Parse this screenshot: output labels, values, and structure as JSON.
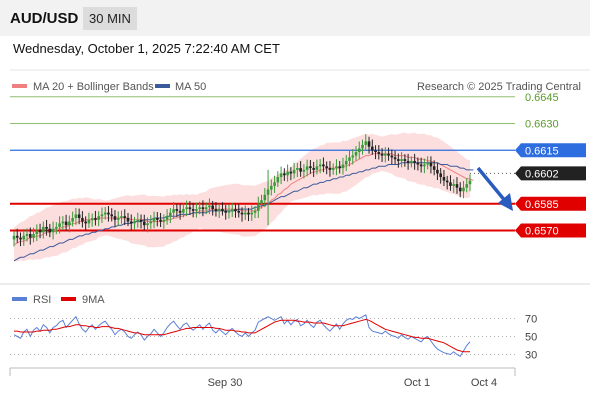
{
  "header": {
    "symbol": "AUD/USD",
    "timeframe": "30 MIN",
    "datetime": "Wednesday, October 1, 2025 7:22:40 AM CET"
  },
  "main_legend": [
    {
      "label": "MA 20 + Bollinger Bands",
      "color": "#f08080"
    },
    {
      "label": "MA 50",
      "color": "#3a5a9c"
    }
  ],
  "credit": "Research © 2025 Trading Central",
  "price_levels": [
    {
      "label": "0.6645",
      "value": 0.6645,
      "color": "#8fbf6f",
      "text_color": "#5a9a2a",
      "style": "text",
      "line": "thin"
    },
    {
      "label": "0.6630",
      "value": 0.663,
      "color": "#8fbf6f",
      "text_color": "#5a9a2a",
      "style": "text",
      "line": "thin"
    },
    {
      "label": "0.6615",
      "value": 0.6615,
      "color": "#2e6de0",
      "text_color": "#ffffff",
      "style": "tag",
      "line": "blue"
    },
    {
      "label": "0.6602",
      "value": 0.6602,
      "color": "#222222",
      "text_color": "#ffffff",
      "style": "tag",
      "line": "dotted"
    },
    {
      "label": "0.6585",
      "value": 0.6585,
      "color": "#e00000",
      "text_color": "#ffffff",
      "style": "tag",
      "line": "red"
    },
    {
      "label": "0.6570",
      "value": 0.657,
      "color": "#e00000",
      "text_color": "#ffffff",
      "style": "tag",
      "line": "red"
    }
  ],
  "rsi_legend": [
    {
      "label": "RSI",
      "color": "#5b7fd6"
    },
    {
      "label": "9MA",
      "color": "#e00000"
    }
  ],
  "rsi_ticks": [
    "70",
    "50",
    "30"
  ],
  "x_ticks": [
    "Sep 30",
    "Oct 1",
    "Oct 4"
  ],
  "chart_data": {
    "type": "candlestick",
    "y_range": [
      0.654,
      0.666
    ],
    "rsi_range": [
      15,
      85
    ],
    "close": [
      0.6567,
      0.6566,
      0.6565,
      0.6567,
      0.6568,
      0.6566,
      0.6568,
      0.657,
      0.6569,
      0.6572,
      0.6571,
      0.6569,
      0.6571,
      0.6572,
      0.6574,
      0.6575,
      0.6573,
      0.6575,
      0.6577,
      0.6579,
      0.6577,
      0.6575,
      0.6574,
      0.6576,
      0.6577,
      0.6576,
      0.6578,
      0.6579,
      0.658,
      0.6579,
      0.6578,
      0.6576,
      0.6577,
      0.6578,
      0.6577,
      0.6575,
      0.6574,
      0.6575,
      0.6576,
      0.6575,
      0.6573,
      0.6574,
      0.6575,
      0.6577,
      0.6576,
      0.6575,
      0.6576,
      0.6578,
      0.658,
      0.6582,
      0.6581,
      0.658,
      0.6582,
      0.6583,
      0.6582,
      0.6581,
      0.6582,
      0.6583,
      0.6582,
      0.6583,
      0.6584,
      0.6582,
      0.6581,
      0.6582,
      0.6581,
      0.658,
      0.6581,
      0.6582,
      0.6581,
      0.658,
      0.6579,
      0.658,
      0.6579,
      0.658,
      0.6581,
      0.6585,
      0.6587,
      0.659,
      0.6593,
      0.6595,
      0.6597,
      0.66,
      0.6602,
      0.6601,
      0.6603,
      0.6602,
      0.6604,
      0.6605,
      0.6603,
      0.6604,
      0.6606,
      0.6605,
      0.6604,
      0.6606,
      0.6607,
      0.6606,
      0.6605,
      0.6604,
      0.6605,
      0.6606,
      0.6605,
      0.6607,
      0.6609,
      0.6611,
      0.6612,
      0.6614,
      0.6616,
      0.6618,
      0.662,
      0.6617,
      0.6615,
      0.6614,
      0.6613,
      0.6612,
      0.6613,
      0.6612,
      0.6611,
      0.661,
      0.6609,
      0.661,
      0.6609,
      0.6608,
      0.6609,
      0.6608,
      0.6607,
      0.6606,
      0.6607,
      0.6608,
      0.6606,
      0.6604,
      0.6602,
      0.66,
      0.6598,
      0.6597,
      0.6595,
      0.6596,
      0.6594,
      0.6592,
      0.6594,
      0.6596,
      0.6598
    ],
    "ma20": [
      0.6562,
      0.6563,
      0.6564,
      0.6564,
      0.6565,
      0.6566,
      0.6566,
      0.6567,
      0.6567,
      0.6568,
      0.6569,
      0.6569,
      0.657,
      0.657,
      0.6571,
      0.6572,
      0.6572,
      0.6573,
      0.6574,
      0.6574,
      0.6575,
      0.6575,
      0.6576,
      0.6576,
      0.6576,
      0.6576,
      0.6577,
      0.6577,
      0.6577,
      0.6577,
      0.6577,
      0.6577,
      0.6577,
      0.6577,
      0.6577,
      0.6577,
      0.6576,
      0.6576,
      0.6576,
      0.6576,
      0.6576,
      0.6575,
      0.6575,
      0.6575,
      0.6575,
      0.6575,
      0.6575,
      0.6576,
      0.6576,
      0.6577,
      0.6577,
      0.6578,
      0.6578,
      0.6579,
      0.6579,
      0.658,
      0.658,
      0.6581,
      0.6581,
      0.6581,
      0.6582,
      0.6582,
      0.6582,
      0.6582,
      0.6582,
      0.6582,
      0.6582,
      0.6582,
      0.6582,
      0.6582,
      0.6581,
      0.6581,
      0.6581,
      0.6581,
      0.6581,
      0.6582,
      0.6583,
      0.6584,
      0.6585,
      0.6587,
      0.6588,
      0.659,
      0.6591,
      0.6593,
      0.6594,
      0.6596,
      0.6597,
      0.6598,
      0.6599,
      0.66,
      0.6601,
      0.6602,
      0.6603,
      0.6603,
      0.6604,
      0.6604,
      0.6605,
      0.6605,
      0.6605,
      0.6605,
      0.6605,
      0.6606,
      0.6606,
      0.6607,
      0.6608,
      0.6609,
      0.661,
      0.6611,
      0.6612,
      0.6612,
      0.6613,
      0.6613,
      0.6613,
      0.6613,
      0.6613,
      0.6613,
      0.6613,
      0.6612,
      0.6612,
      0.6612,
      0.6612,
      0.6611,
      0.6611,
      0.6611,
      0.661,
      0.661,
      0.661,
      0.6609,
      0.6609,
      0.6608,
      0.6608,
      0.6607,
      0.6606,
      0.6605,
      0.6604,
      0.6603,
      0.6602,
      0.6601,
      0.66,
      0.6599,
      0.6599,
      0.6598
    ],
    "ma50": [
      0.6553,
      0.6554,
      0.6555,
      0.6555,
      0.6556,
      0.6557,
      0.6557,
      0.6558,
      0.6559,
      0.6559,
      0.656,
      0.6561,
      0.6561,
      0.6562,
      0.6563,
      0.6563,
      0.6564,
      0.6565,
      0.6565,
      0.6566,
      0.6567,
      0.6567,
      0.6568,
      0.6568,
      0.6569,
      0.6569,
      0.657,
      0.657,
      0.6571,
      0.6571,
      0.6572,
      0.6572,
      0.6573,
      0.6573,
      0.6574,
      0.6574,
      0.6574,
      0.6575,
      0.6575,
      0.6575,
      0.6576,
      0.6576,
      0.6576,
      0.6577,
      0.6577,
      0.6577,
      0.6577,
      0.6578,
      0.6578,
      0.6578,
      0.6578,
      0.6579,
      0.6579,
      0.6579,
      0.6579,
      0.658,
      0.658,
      0.658,
      0.658,
      0.658,
      0.6581,
      0.6581,
      0.6581,
      0.6581,
      0.6581,
      0.6581,
      0.6581,
      0.6581,
      0.6581,
      0.6582,
      0.6582,
      0.6582,
      0.6582,
      0.6582,
      0.6583,
      0.6583,
      0.6584,
      0.6584,
      0.6585,
      0.6586,
      0.6587,
      0.6588,
      0.6589,
      0.6589,
      0.659,
      0.6591,
      0.6592,
      0.6592,
      0.6593,
      0.6594,
      0.6594,
      0.6595,
      0.6596,
      0.6596,
      0.6597,
      0.6597,
      0.6598,
      0.6598,
      0.6599,
      0.6599,
      0.66,
      0.66,
      0.6601,
      0.6601,
      0.6602,
      0.6602,
      0.6603,
      0.6603,
      0.6604,
      0.6604,
      0.6605,
      0.6605,
      0.6606,
      0.6606,
      0.6606,
      0.6607,
      0.6607,
      0.6607,
      0.6607,
      0.6608,
      0.6608,
      0.6608,
      0.6608,
      0.6608,
      0.6608,
      0.6608,
      0.6608,
      0.6608,
      0.6608,
      0.6608,
      0.6608,
      0.6607,
      0.6607,
      0.6607,
      0.6606,
      0.6606,
      0.6606,
      0.6605,
      0.6605,
      0.6604,
      0.6604,
      0.6604
    ],
    "band_width": 0.0012,
    "rsi": [
      52,
      50,
      48,
      55,
      58,
      50,
      57,
      60,
      56,
      63,
      60,
      54,
      60,
      62,
      66,
      68,
      60,
      64,
      68,
      72,
      64,
      58,
      55,
      60,
      63,
      58,
      62,
      65,
      67,
      62,
      58,
      52,
      56,
      58,
      55,
      50,
      48,
      52,
      55,
      52,
      46,
      50,
      53,
      58,
      54,
      50,
      54,
      60,
      64,
      67,
      62,
      58,
      63,
      65,
      60,
      57,
      60,
      63,
      58,
      62,
      65,
      57,
      54,
      58,
      55,
      52,
      56,
      59,
      55,
      52,
      50,
      54,
      50,
      54,
      57,
      66,
      68,
      70,
      72,
      70,
      68,
      70,
      72,
      64,
      68,
      63,
      67,
      69,
      62,
      64,
      68,
      63,
      60,
      66,
      68,
      63,
      59,
      56,
      60,
      64,
      58,
      64,
      68,
      70,
      69,
      72,
      70,
      72,
      74,
      60,
      56,
      55,
      54,
      53,
      56,
      53,
      51,
      50,
      48,
      52,
      49,
      47,
      50,
      48,
      46,
      44,
      48,
      50,
      45,
      40,
      36,
      34,
      32,
      31,
      30,
      33,
      30,
      28,
      34,
      40,
      44
    ],
    "rsi_ma": [
      56,
      56,
      55,
      55,
      55,
      55,
      55,
      56,
      56,
      57,
      57,
      57,
      58,
      58,
      59,
      60,
      61,
      61,
      62,
      63,
      63,
      62,
      62,
      61,
      61,
      60,
      60,
      61,
      61,
      61,
      60,
      59,
      59,
      58,
      57,
      56,
      55,
      54,
      54,
      53,
      52,
      52,
      52,
      52,
      52,
      52,
      52,
      53,
      54,
      55,
      56,
      57,
      58,
      59,
      59,
      60,
      60,
      60,
      60,
      60,
      60,
      60,
      59,
      59,
      58,
      57,
      57,
      57,
      56,
      56,
      55,
      55,
      54,
      54,
      54,
      56,
      58,
      60,
      62,
      64,
      66,
      67,
      68,
      68,
      68,
      68,
      68,
      67,
      67,
      66,
      66,
      66,
      65,
      65,
      65,
      65,
      64,
      63,
      62,
      62,
      62,
      62,
      63,
      64,
      65,
      66,
      67,
      68,
      69,
      68,
      66,
      64,
      62,
      60,
      58,
      57,
      56,
      55,
      54,
      53,
      52,
      51,
      50,
      49,
      49,
      48,
      48,
      48,
      47,
      46,
      45,
      44,
      43,
      41,
      39,
      37,
      35,
      34,
      33,
      33,
      33
    ]
  }
}
